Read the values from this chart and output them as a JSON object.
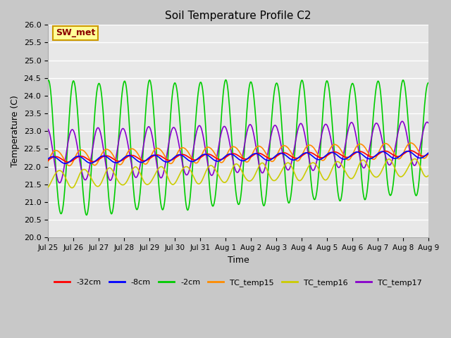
{
  "title": "Soil Temperature Profile C2",
  "xlabel": "Time",
  "ylabel": "Temperature (C)",
  "ylim": [
    20.0,
    26.0
  ],
  "yticks": [
    20.0,
    20.5,
    21.0,
    21.5,
    22.0,
    22.5,
    23.0,
    23.5,
    24.0,
    24.5,
    25.0,
    25.5,
    26.0
  ],
  "xtick_labels": [
    "Jul 25",
    "Jul 26",
    "Jul 27",
    "Jul 28",
    "Jul 29",
    "Jul 30",
    "Jul 31",
    "Aug 1",
    "Aug 2",
    "Aug 3",
    "Aug 4",
    "Aug 5",
    "Aug 6",
    "Aug 7",
    "Aug 8",
    "Aug 9"
  ],
  "legend_labels": [
    "-32cm",
    "-8cm",
    "-2cm",
    "TC_temp15",
    "TC_temp16",
    "TC_temp17"
  ],
  "legend_colors": [
    "#ff0000",
    "#0000ff",
    "#00cc00",
    "#ff8c00",
    "#cccc00",
    "#8800cc"
  ],
  "annotation_text": "SW_met",
  "annotation_color": "#8b0000",
  "annotation_bg": "#ffff99",
  "annotation_edge": "#cc9900",
  "fig_bg_color": "#c8c8c8",
  "plot_bg_color": "#e8e8e8",
  "grid_color": "#ffffff",
  "figsize": [
    6.4,
    4.8
  ],
  "dpi": 100
}
